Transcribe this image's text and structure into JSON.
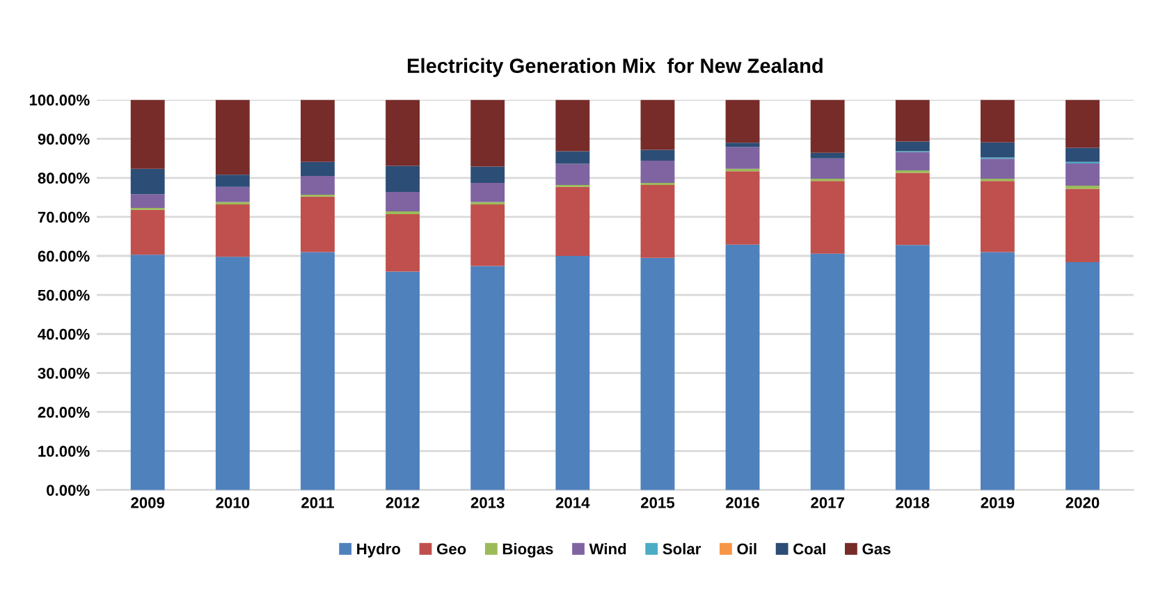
{
  "chart_data": {
    "type": "bar",
    "title": "Electricity Generation Mix  for New Zealand",
    "stacked": true,
    "categories": [
      "2009",
      "2010",
      "2011",
      "2012",
      "2013",
      "2014",
      "2015",
      "2016",
      "2017",
      "2018",
      "2019",
      "2020"
    ],
    "series": [
      {
        "name": "Hydro",
        "color": "#4f81bd",
        "values": [
          60.3,
          59.8,
          61.0,
          56.0,
          57.4,
          60.0,
          59.5,
          62.9,
          60.6,
          62.8,
          61.0,
          58.4
        ]
      },
      {
        "name": "Geo",
        "color": "#c0504d",
        "values": [
          11.5,
          13.4,
          14.2,
          14.7,
          15.8,
          17.7,
          18.7,
          18.8,
          18.6,
          18.5,
          18.2,
          18.8
        ]
      },
      {
        "name": "Biogas",
        "color": "#9bbb59",
        "values": [
          0.5,
          0.6,
          0.5,
          0.7,
          0.6,
          0.5,
          0.5,
          0.6,
          0.6,
          0.6,
          0.6,
          0.8
        ]
      },
      {
        "name": "Wind",
        "color": "#8064a2",
        "values": [
          3.5,
          3.9,
          4.8,
          5.0,
          4.9,
          5.4,
          5.7,
          5.6,
          5.2,
          4.7,
          5.1,
          5.7
        ]
      },
      {
        "name": "Solar",
        "color": "#4bacc6",
        "values": [
          0,
          0,
          0,
          0,
          0,
          0,
          0,
          0,
          0,
          0.2,
          0.3,
          0.4
        ]
      },
      {
        "name": "Oil",
        "color": "#f79646",
        "values": [
          0,
          0,
          0,
          0,
          0,
          0,
          0,
          0,
          0,
          0,
          0,
          0
        ]
      },
      {
        "name": "Coal",
        "color": "#2c4d75",
        "values": [
          6.5,
          3.1,
          3.6,
          6.7,
          4.2,
          3.2,
          2.8,
          1.1,
          1.4,
          2.5,
          3.9,
          3.6
        ]
      },
      {
        "name": "Gas",
        "color": "#772c2a",
        "values": [
          17.7,
          19.2,
          15.9,
          16.9,
          17.1,
          13.2,
          12.8,
          11.0,
          13.6,
          10.7,
          10.9,
          12.3
        ]
      }
    ],
    "ylim": [
      0,
      100
    ],
    "yticks": [
      {
        "value": 0,
        "label": "0.00%"
      },
      {
        "value": 10,
        "label": "10.00%"
      },
      {
        "value": 20,
        "label": "20.00%"
      },
      {
        "value": 30,
        "label": "30.00%"
      },
      {
        "value": 40,
        "label": "40.00%"
      },
      {
        "value": 50,
        "label": "50.00%"
      },
      {
        "value": 60,
        "label": "60.00%"
      },
      {
        "value": 70,
        "label": "70.00%"
      },
      {
        "value": 80,
        "label": "80.00%"
      },
      {
        "value": 90,
        "label": "90.00%"
      },
      {
        "value": 100,
        "label": "100.00%"
      }
    ],
    "grid": "y",
    "legend": "bottom"
  }
}
